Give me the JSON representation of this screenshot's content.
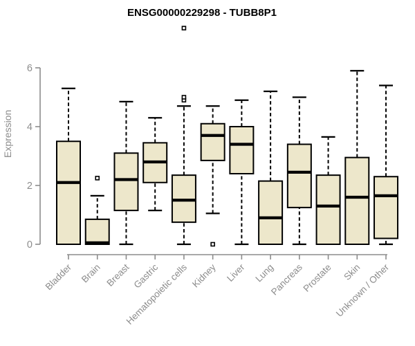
{
  "title": "ENSG00000229298 - TUBB8P1",
  "chart_data": {
    "type": "boxplot",
    "title": "ENSG00000229298 - TUBB8P1",
    "xlabel": "",
    "ylabel": "Expression",
    "ylim": [
      0,
      6
    ],
    "yticks": [
      0,
      2,
      4,
      6
    ],
    "grid": false,
    "legend": false,
    "categories": [
      "Bladder",
      "Brain",
      "Breast",
      "Gastric",
      "Hematopoietic cells",
      "Kidney",
      "Liver",
      "Lung",
      "Pancreas",
      "Prostate",
      "Skin",
      "Unknown / Other"
    ],
    "series": [
      {
        "category": "Bladder",
        "min": 0,
        "q1": 0,
        "median": 2.1,
        "q3": 3.5,
        "max": 5.3,
        "outliers": []
      },
      {
        "category": "Brain",
        "min": 0,
        "q1": 0,
        "median": 0.05,
        "q3": 0.85,
        "max": 1.65,
        "outliers": [
          2.25
        ]
      },
      {
        "category": "Breast",
        "min": 0,
        "q1": 1.15,
        "median": 2.2,
        "q3": 3.1,
        "max": 4.85,
        "outliers": []
      },
      {
        "category": "Gastric",
        "min": 1.15,
        "q1": 2.1,
        "median": 2.8,
        "q3": 3.45,
        "max": 4.3,
        "outliers": []
      },
      {
        "category": "Hematopoietic cells",
        "min": 0,
        "q1": 0.75,
        "median": 1.5,
        "q3": 2.35,
        "max": 4.7,
        "outliers": [
          4.9,
          5.0,
          7.35
        ]
      },
      {
        "category": "Kidney",
        "min": 1.05,
        "q1": 2.85,
        "median": 3.7,
        "q3": 4.1,
        "max": 4.7,
        "outliers": [
          0
        ]
      },
      {
        "category": "Liver",
        "min": 0,
        "q1": 2.4,
        "median": 3.4,
        "q3": 4.0,
        "max": 4.9,
        "outliers": []
      },
      {
        "category": "Lung",
        "min": 0,
        "q1": 0,
        "median": 0.9,
        "q3": 2.15,
        "max": 5.2,
        "outliers": []
      },
      {
        "category": "Pancreas",
        "min": 0,
        "q1": 1.25,
        "median": 2.45,
        "q3": 3.4,
        "max": 5.0,
        "outliers": []
      },
      {
        "category": "Prostate",
        "min": 0,
        "q1": 0,
        "median": 1.3,
        "q3": 2.35,
        "max": 3.65,
        "outliers": []
      },
      {
        "category": "Skin",
        "min": 0,
        "q1": 0,
        "median": 1.6,
        "q3": 2.95,
        "max": 5.9,
        "outliers": []
      },
      {
        "category": "Unknown / Other",
        "min": 0,
        "q1": 0.2,
        "median": 1.65,
        "q3": 2.3,
        "max": 5.4,
        "outliers": []
      }
    ],
    "colors": {
      "box_fill": "#EDE7CB",
      "box_border": "#000000",
      "median": "#000000",
      "whisker": "#000000",
      "outlier_fill": "#ffffff",
      "axis": "#8c8c8c",
      "tick_label": "#8c8c8c",
      "title": "#000000",
      "background": "#ffffff"
    }
  }
}
